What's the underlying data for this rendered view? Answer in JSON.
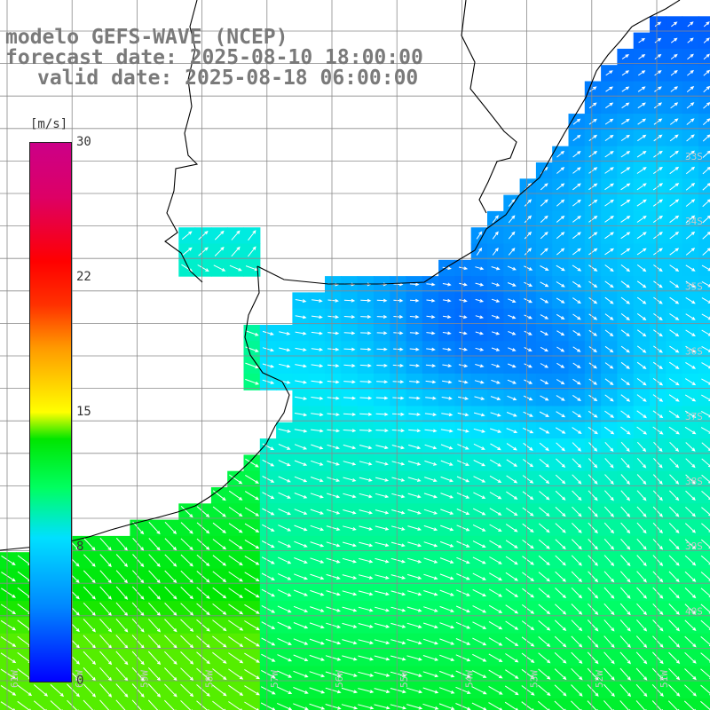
{
  "titles": {
    "line1": "modelo GEFS-WAVE (NCEP)",
    "line2": "forecast date: 2025-08-10 18:00:00",
    "line3": "valid date: 2025-08-18 06:00:00"
  },
  "colorbar": {
    "unit": "[m/s]",
    "ticks": [
      "30",
      "22",
      "15",
      "8",
      "0"
    ],
    "min": 0,
    "max": 30
  },
  "grid": {
    "lat_labels": [
      "33S",
      "34S",
      "35S",
      "36S",
      "37S",
      "38S",
      "39S",
      "40S"
    ],
    "lon_labels": [
      "61W",
      "60W",
      "59W",
      "58W",
      "57W",
      "56W",
      "55W",
      "54W",
      "53W",
      "52W",
      "51W"
    ]
  }
}
